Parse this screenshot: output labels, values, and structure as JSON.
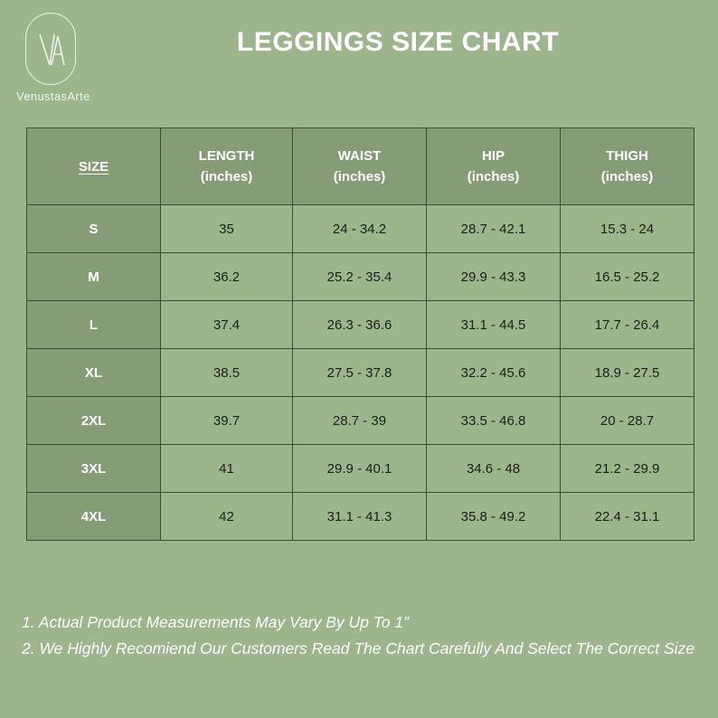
{
  "brand": {
    "logo_letters": "VA",
    "name": "VenustasArte"
  },
  "title": "LEGGINGS SIZE CHART",
  "table": {
    "headers": [
      {
        "name": "SIZE",
        "unit": ""
      },
      {
        "name": "LENGTH",
        "unit": "(inches)"
      },
      {
        "name": "WAIST",
        "unit": "(inches)"
      },
      {
        "name": "HIP",
        "unit": "(inches)"
      },
      {
        "name": "THIGH",
        "unit": "(inches)"
      }
    ],
    "rows": [
      [
        "S",
        "35",
        "24 - 34.2",
        "28.7 - 42.1",
        "15.3 - 24"
      ],
      [
        "M",
        "36.2",
        "25.2 - 35.4",
        "29.9 - 43.3",
        "16.5 - 25.2"
      ],
      [
        "L",
        "37.4",
        "26.3 - 36.6",
        "31.1 - 44.5",
        "17.7 - 26.4"
      ],
      [
        "XL",
        "38.5",
        "27.5 - 37.8",
        "32.2 - 45.6",
        "18.9 - 27.5"
      ],
      [
        "2XL",
        "39.7",
        "28.7 - 39",
        "33.5 - 46.8",
        "20 - 28.7"
      ],
      [
        "3XL",
        "41",
        "29.9 - 40.1",
        "34.6 - 48",
        "21.2 - 29.9"
      ],
      [
        "4XL",
        "42",
        "31.1 - 41.3",
        "35.8 - 49.2",
        "22.4 - 31.1"
      ]
    ]
  },
  "notes": [
    "1. Actual Product Measurements May Vary By Up To 1”",
    "2. We Highly Recomiend Our Customers Read The Chart Carefully And Select The Correct Size"
  ],
  "colors": {
    "background": "#9db58d",
    "header_cell": "#869c77",
    "border": "#3d4a36",
    "text_light": "#ffffff",
    "text_dark": "#1b1f18"
  }
}
